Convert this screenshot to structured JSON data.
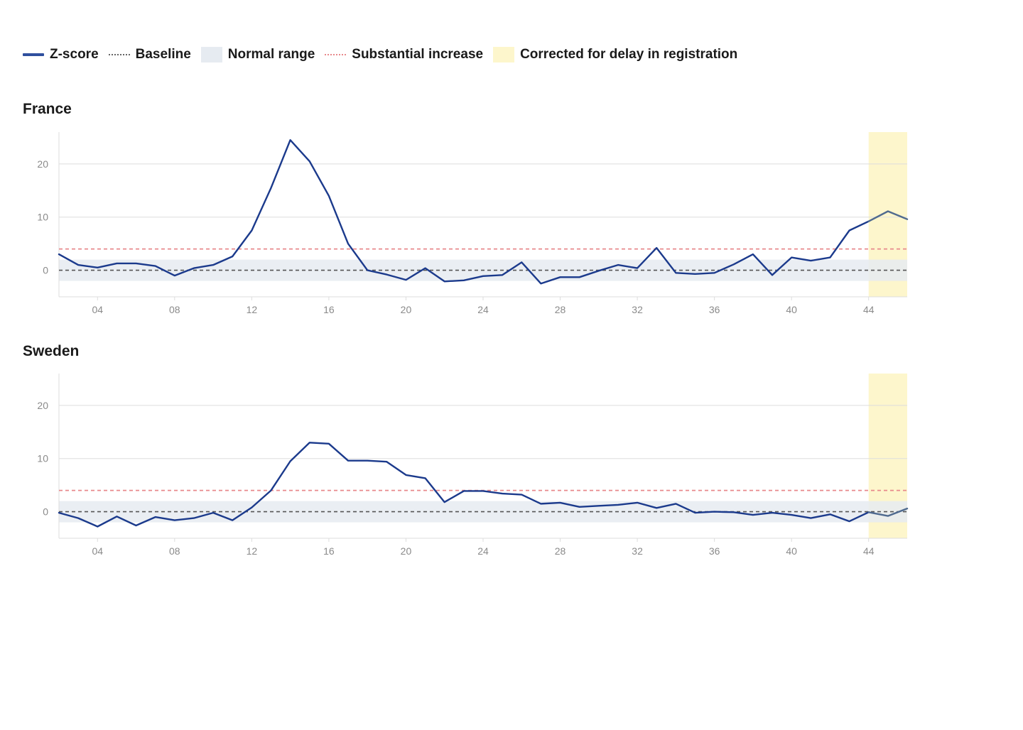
{
  "legend": {
    "zscore": "Z-score",
    "baseline": "Baseline",
    "normal_range": "Normal range",
    "substantial_increase": "Substantial increase",
    "corrected": "Corrected for delay in registration"
  },
  "colors": {
    "zscore": "#1b3a8c",
    "zscore_corrected": "#4f6a8f",
    "baseline": "#555555",
    "normal_range": "#e6ebf1",
    "substantial_increase": "#e8898c",
    "corrected_band": "#fdf6cc",
    "grid": "#dddddd",
    "tick_text": "#8a8a8a"
  },
  "chart_data": [
    {
      "type": "line",
      "title": "France",
      "xlabel": "",
      "ylabel": "",
      "x_range": [
        2,
        46
      ],
      "x_ticks": [
        "04",
        "08",
        "12",
        "16",
        "20",
        "24",
        "28",
        "32",
        "36",
        "40",
        "44"
      ],
      "x_tick_values": [
        4,
        8,
        12,
        16,
        20,
        24,
        28,
        32,
        36,
        40,
        44
      ],
      "ylim": [
        -5,
        26
      ],
      "y_ticks": [
        0,
        10,
        20
      ],
      "baseline": 0,
      "normal_range": [
        -2,
        2
      ],
      "substantial_increase": 4,
      "corrected_from_week": 44,
      "grid": true,
      "series": [
        {
          "name": "Z-score",
          "x": [
            2,
            3,
            4,
            5,
            6,
            7,
            8,
            9,
            10,
            11,
            12,
            13,
            14,
            15,
            16,
            17,
            18,
            19,
            20,
            21,
            22,
            23,
            24,
            25,
            26,
            27,
            28,
            29,
            30,
            31,
            32,
            33,
            34,
            35,
            36,
            37,
            38,
            39,
            40,
            41,
            42,
            43,
            44,
            45,
            46
          ],
          "values": [
            3,
            1,
            0.5,
            1.3,
            1.3,
            0.8,
            -1,
            0.4,
            1,
            2.6,
            7.5,
            15.5,
            24.5,
            20.5,
            14,
            5,
            0,
            -0.8,
            -1.8,
            0.4,
            -2.1,
            -1.9,
            -1.1,
            -0.9,
            1.5,
            -2.5,
            -1.3,
            -1.3,
            -0.1,
            1,
            0.4,
            4.2,
            -0.5,
            -0.7,
            -0.5,
            1.1,
            3,
            -0.9,
            2.4,
            1.8,
            2.4,
            7.5,
            9.2,
            11.1,
            9.6
          ]
        }
      ]
    },
    {
      "type": "line",
      "title": "Sweden",
      "xlabel": "",
      "ylabel": "",
      "x_range": [
        2,
        46
      ],
      "x_ticks": [
        "04",
        "08",
        "12",
        "16",
        "20",
        "24",
        "28",
        "32",
        "36",
        "40",
        "44"
      ],
      "x_tick_values": [
        4,
        8,
        12,
        16,
        20,
        24,
        28,
        32,
        36,
        40,
        44
      ],
      "ylim": [
        -5,
        26
      ],
      "y_ticks": [
        0,
        10,
        20
      ],
      "baseline": 0,
      "normal_range": [
        -2,
        2
      ],
      "substantial_increase": 4,
      "corrected_from_week": 44,
      "grid": true,
      "series": [
        {
          "name": "Z-score",
          "x": [
            2,
            3,
            4,
            5,
            6,
            7,
            8,
            9,
            10,
            11,
            12,
            13,
            14,
            15,
            16,
            17,
            18,
            19,
            20,
            21,
            22,
            23,
            24,
            25,
            26,
            27,
            28,
            29,
            30,
            31,
            32,
            33,
            34,
            35,
            36,
            37,
            38,
            39,
            40,
            41,
            42,
            43,
            44,
            45,
            46
          ],
          "values": [
            -0.2,
            -1.2,
            -2.8,
            -0.9,
            -2.6,
            -1,
            -1.6,
            -1.2,
            -0.2,
            -1.6,
            0.8,
            4,
            9.5,
            13,
            12.8,
            9.6,
            9.6,
            9.4,
            6.9,
            6.3,
            1.8,
            3.9,
            3.9,
            3.4,
            3.2,
            1.5,
            1.7,
            0.9,
            1.1,
            1.3,
            1.7,
            0.7,
            1.5,
            -0.2,
            0,
            -0.1,
            -0.6,
            -0.2,
            -0.6,
            -1.2,
            -0.5,
            -1.8,
            -0.1,
            -0.8,
            0.6
          ]
        }
      ]
    }
  ]
}
